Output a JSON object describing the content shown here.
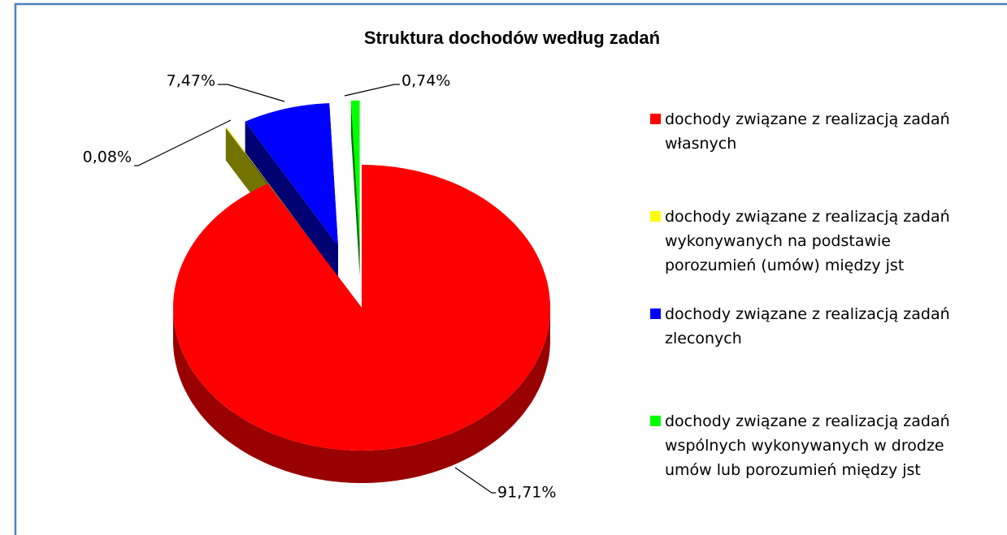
{
  "chart_data": {
    "type": "pie",
    "title": "Struktura dochodów według zadań",
    "categories": [
      "dochody związane z realizacją zadań własnych",
      "dochody związane z realizacją zadań wykonywanych na podstawie porozumień (umów) między jst",
      "dochody związane z realizacją zadań zleconych",
      "dochody związane z realizacją zadań wspólnych wykonywanych w drodze umów lub porozumień między jst"
    ],
    "values": [
      91.71,
      0.08,
      7.47,
      0.74
    ],
    "value_labels": [
      "91,71%",
      "0,08%",
      "7,47%",
      "0,74%"
    ],
    "colors": [
      "#ff0000",
      "#ffff00",
      "#0000ff",
      "#00ff00"
    ],
    "legend": "right"
  }
}
